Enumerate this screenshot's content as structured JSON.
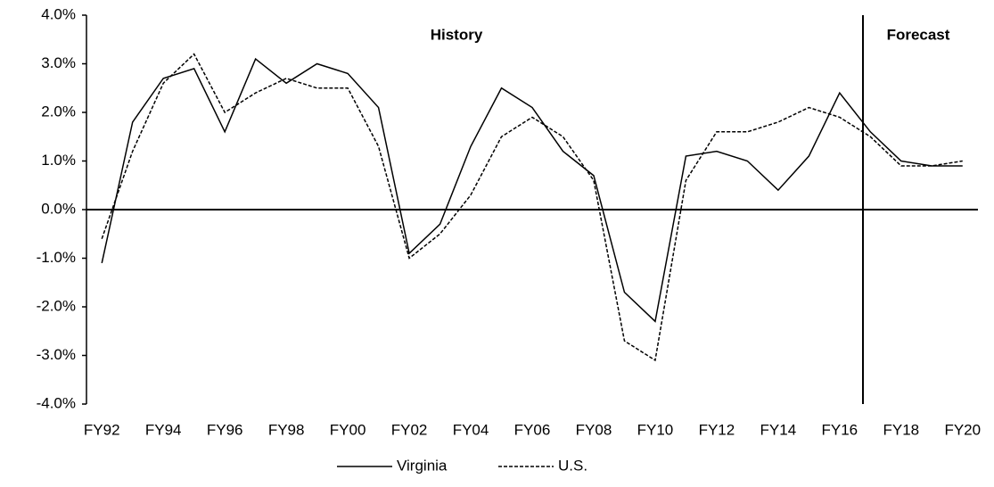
{
  "chart_data": {
    "type": "line",
    "categories": [
      "FY92",
      null,
      "FY94",
      null,
      "FY96",
      null,
      "FY98",
      null,
      "FY00",
      null,
      "FY02",
      null,
      "FY04",
      null,
      "FY06",
      null,
      "FY08",
      null,
      "FY10",
      null,
      "FY12",
      null,
      "FY14",
      null,
      "FY16",
      null,
      "FY18",
      null,
      "FY20"
    ],
    "series": [
      {
        "name": "Virginia",
        "color": "#000000",
        "line_style": "solid",
        "values": [
          -1.1,
          1.8,
          2.7,
          2.9,
          1.6,
          3.1,
          2.6,
          3.0,
          2.8,
          2.1,
          -0.9,
          -0.3,
          1.3,
          2.5,
          2.1,
          1.2,
          0.7,
          -1.7,
          -2.3,
          1.1,
          1.2,
          1.0,
          0.4,
          1.1,
          2.4,
          1.6,
          1.0,
          0.9,
          0.9
        ]
      },
      {
        "name": "U.S.",
        "color": "#000000",
        "line_style": "dashed",
        "values": [
          -0.6,
          1.2,
          2.6,
          3.2,
          2.0,
          2.4,
          2.7,
          2.5,
          2.5,
          1.3,
          -1.0,
          -0.5,
          0.3,
          1.5,
          1.9,
          1.5,
          0.6,
          -2.7,
          -3.1,
          0.6,
          1.6,
          1.6,
          1.8,
          2.1,
          1.9,
          1.5,
          0.9,
          0.9,
          1.0
        ]
      }
    ],
    "ylim": [
      -4,
      4
    ],
    "yticks": [
      {
        "value": -4,
        "label": "-4.0%"
      },
      {
        "value": -3,
        "label": "-3.0%"
      },
      {
        "value": -2,
        "label": "-2.0%"
      },
      {
        "value": -1,
        "label": "-1.0%"
      },
      {
        "value": 0,
        "label": "0.0%"
      },
      {
        "value": 1,
        "label": "1.0%"
      },
      {
        "value": 2,
        "label": "2.0%"
      },
      {
        "value": 3,
        "label": "3.0%"
      },
      {
        "value": 4,
        "label": "4.0%"
      }
    ],
    "grid": false,
    "annotations": [
      "History",
      "Forecast"
    ],
    "legend": "bottom"
  }
}
